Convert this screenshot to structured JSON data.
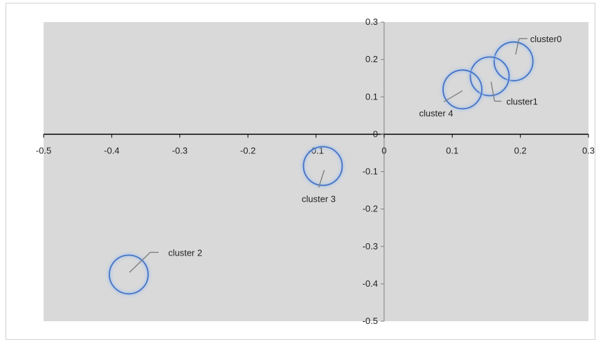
{
  "chart_data": {
    "type": "scatter",
    "title": "",
    "xlabel": "",
    "ylabel": "",
    "xlim": [
      -0.5,
      0.3
    ],
    "ylim": [
      -0.5,
      0.3
    ],
    "x_ticks": [
      -0.5,
      -0.4,
      -0.3,
      -0.2,
      -0.1,
      0,
      0.1,
      0.2,
      0.3
    ],
    "y_ticks": [
      0.3,
      0.2,
      0.1,
      0,
      -0.1,
      -0.2,
      -0.3,
      -0.4,
      -0.5
    ],
    "x_tick_labels": [
      "-0.5",
      "-0.4",
      "-0.3",
      "-0.2",
      "-0.1",
      "0",
      "0.1",
      "0.2",
      "0.3"
    ],
    "y_tick_labels": [
      "0.3",
      "0.2",
      "0.1",
      "0",
      "-0.1",
      "-0.2",
      "-0.3",
      "-0.4",
      "-0.5"
    ],
    "grid": false,
    "legend": false,
    "points": [
      {
        "label": "cluster0",
        "x": 0.19,
        "y": 0.195
      },
      {
        "label": "cluster1",
        "x": 0.155,
        "y": 0.155
      },
      {
        "label": "cluster 2",
        "x": -0.375,
        "y": -0.375
      },
      {
        "label": "cluster 3",
        "x": -0.09,
        "y": -0.085
      },
      {
        "label": "cluster 4",
        "x": 0.115,
        "y": 0.12
      }
    ]
  },
  "colors": {
    "plot_area": "#d9d9d9",
    "marker_stroke": "#4472c4",
    "marker_glow": "#a9c4ea",
    "x_axis": "#000000",
    "y_axis": "#7f7f7f",
    "leader_line": "#7f7f7f"
  }
}
